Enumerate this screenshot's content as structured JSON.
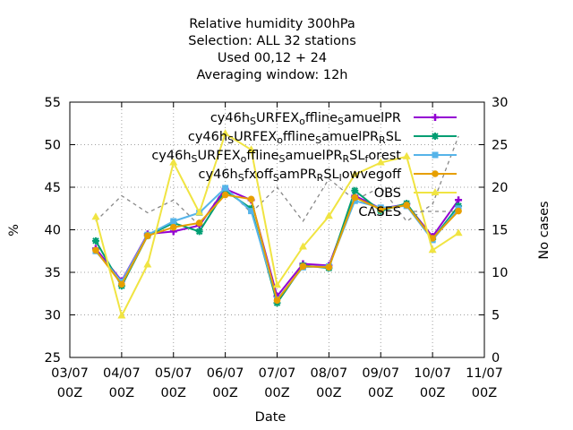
{
  "chart_data": {
    "type": "line",
    "title_lines": [
      "Relative humidity 300hPa",
      "Selection: ALL      32 stations",
      "Used  00,12  + 24",
      "Averaging window: 12h"
    ],
    "xlabel": "Date",
    "ylabel": "%",
    "y2label": "No cases",
    "xlim": [
      0,
      8
    ],
    "ylim": [
      25,
      55
    ],
    "y2lim": [
      0,
      30
    ],
    "grid": true,
    "legend_position": "top-right",
    "x_ticks": [
      {
        "x": 0,
        "l1": "03/07",
        "l2": "00Z"
      },
      {
        "x": 1,
        "l1": "04/07",
        "l2": "00Z"
      },
      {
        "x": 2,
        "l1": "05/07",
        "l2": "00Z"
      },
      {
        "x": 3,
        "l1": "06/07",
        "l2": "00Z"
      },
      {
        "x": 4,
        "l1": "07/07",
        "l2": "00Z"
      },
      {
        "x": 5,
        "l1": "08/07",
        "l2": "00Z"
      },
      {
        "x": 6,
        "l1": "09/07",
        "l2": "00Z"
      },
      {
        "x": 7,
        "l1": "10/07",
        "l2": "00Z"
      },
      {
        "x": 8,
        "l1": "11/07",
        "l2": "00Z"
      }
    ],
    "y_ticks": [
      25,
      30,
      35,
      40,
      45,
      50,
      55
    ],
    "y2_ticks": [
      0,
      5,
      10,
      15,
      20,
      25,
      30
    ],
    "x": [
      0.5,
      1.0,
      1.5,
      2.0,
      2.5,
      3.0,
      3.5,
      4.0,
      4.5,
      5.0,
      5.5,
      6.0,
      6.5,
      7.0,
      7.5
    ],
    "series": [
      {
        "name": [
          [
            "cy46h",
            ""
          ],
          [
            "S",
            "sub"
          ],
          [
            "URFEX",
            ""
          ],
          [
            "o",
            "sub"
          ],
          [
            "ffline",
            ""
          ],
          [
            "S",
            "sub"
          ],
          [
            "amuelPR",
            ""
          ]
        ],
        "color": "#9400d3",
        "marker": "plus",
        "axis": "left",
        "values": [
          37.8,
          34.0,
          39.5,
          39.8,
          40.5,
          44.8,
          43.5,
          32.2,
          36.0,
          35.8,
          44.0,
          42.5,
          43.0,
          39.2,
          43.5
        ]
      },
      {
        "name": [
          [
            "cy46h",
            ""
          ],
          [
            "S",
            "sub"
          ],
          [
            "URFEX",
            ""
          ],
          [
            "o",
            "sub"
          ],
          [
            "ffline",
            ""
          ],
          [
            "S",
            "sub"
          ],
          [
            "amuelPR",
            ""
          ],
          [
            "R",
            "sub"
          ],
          [
            "SL",
            ""
          ]
        ],
        "color": "#009e73",
        "marker": "star",
        "axis": "left",
        "values": [
          38.7,
          33.4,
          39.3,
          40.8,
          39.8,
          44.6,
          42.5,
          31.4,
          35.8,
          35.5,
          44.6,
          42.2,
          43.1,
          38.9,
          42.8
        ]
      },
      {
        "name": [
          [
            "cy46h",
            ""
          ],
          [
            "S",
            "sub"
          ],
          [
            "URFEX",
            ""
          ],
          [
            "o",
            "sub"
          ],
          [
            "ffline",
            ""
          ],
          [
            "S",
            "sub"
          ],
          [
            "amuelPR",
            ""
          ],
          [
            "R",
            "sub"
          ],
          [
            "SL",
            ""
          ],
          [
            "f",
            "sub"
          ],
          [
            "orest",
            ""
          ]
        ],
        "color": "#56b4e9",
        "marker": "box",
        "axis": "left",
        "values": [
          37.5,
          33.9,
          39.4,
          41.0,
          42.0,
          44.9,
          42.2,
          31.8,
          35.6,
          35.7,
          43.4,
          42.6,
          42.8,
          38.8,
          42.5
        ]
      },
      {
        "name": [
          [
            "cy46h",
            ""
          ],
          [
            "S",
            "sub"
          ],
          [
            "fxoff",
            ""
          ],
          [
            "S",
            "sub"
          ],
          [
            "amPR",
            ""
          ],
          [
            "R",
            "sub"
          ],
          [
            "SL",
            ""
          ],
          [
            "l",
            "sub"
          ],
          [
            "owvegoff",
            ""
          ]
        ],
        "color": "#e69f00",
        "marker": "circle",
        "axis": "left",
        "values": [
          37.6,
          33.6,
          39.3,
          40.3,
          40.8,
          44.1,
          43.6,
          31.7,
          35.7,
          35.6,
          43.8,
          42.4,
          42.9,
          39.0,
          42.2
        ]
      },
      {
        "name": [
          [
            "OBS",
            ""
          ]
        ],
        "color": "#f0e442",
        "marker": "triangle",
        "axis": "left",
        "values": [
          41.5,
          29.9,
          35.9,
          47.9,
          42.0,
          51.3,
          49.4,
          33.5,
          38.0,
          41.6,
          46.5,
          47.9,
          48.6,
          37.6,
          39.6
        ]
      },
      {
        "name": [
          [
            "CASES",
            ""
          ]
        ],
        "color": "#888888",
        "marker": "none",
        "axis": "right",
        "dash": true,
        "values": [
          16.0,
          19.0,
          17.0,
          18.5,
          15.5,
          20.0,
          17.0,
          20.0,
          16.0,
          21.0,
          18.5,
          20.0,
          16.0,
          18.0,
          26.0
        ]
      }
    ]
  }
}
